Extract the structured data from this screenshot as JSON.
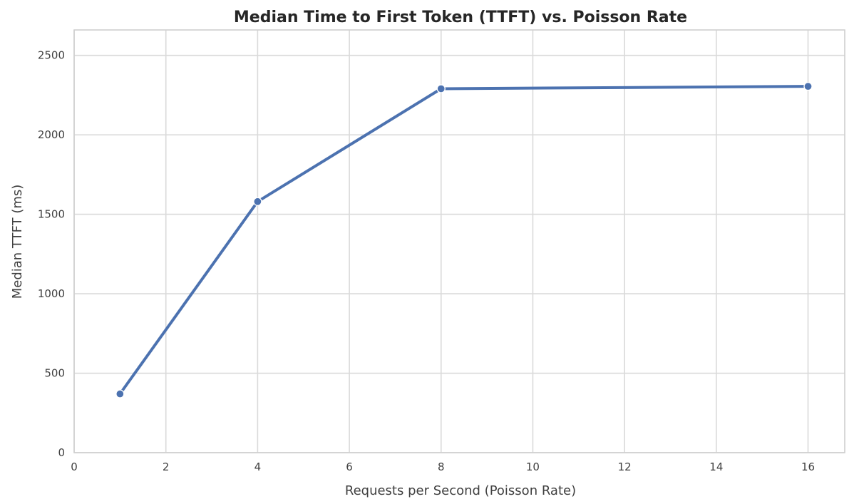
{
  "chart_data": {
    "type": "line",
    "title": "Median Time to First Token (TTFT) vs. Poisson Rate",
    "xlabel": "Requests per Second (Poisson Rate)",
    "ylabel": "Median TTFT (ms)",
    "xlim": [
      0,
      16.8
    ],
    "ylim": [
      0,
      2660
    ],
    "xticks": [
      0,
      2,
      4,
      6,
      8,
      10,
      12,
      14,
      16
    ],
    "yticks": [
      0,
      500,
      1000,
      1500,
      2000,
      2500
    ],
    "grid": true,
    "series": [
      {
        "x": [
          1,
          4,
          8,
          16
        ],
        "y": [
          370,
          1580,
          2290,
          2305
        ],
        "color": "#4c72b0",
        "marker": "circle"
      }
    ]
  }
}
